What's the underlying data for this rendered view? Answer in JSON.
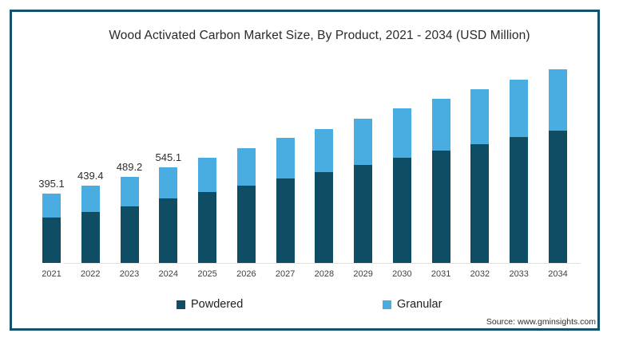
{
  "title": "Wood Activated Carbon Market Size, By Product, 2021 - 2034 (USD Million)",
  "source": "Source: www.gminsights.com",
  "frame": {
    "border_color": "#14536E"
  },
  "legend": {
    "position": "bottom",
    "items": [
      {
        "label": "Powdered",
        "color": "#0E4D64"
      },
      {
        "label": "Granular",
        "color": "#4AADE2"
      }
    ]
  },
  "chart_data": {
    "type": "bar",
    "stacked": true,
    "title": "Wood Activated Carbon Market Size, By Product, 2021 - 2034 (USD Million)",
    "xlabel": "",
    "ylabel": "USD Million",
    "ylim": [
      0,
      1150
    ],
    "grid": false,
    "legend_position": "bottom",
    "categories": [
      "2021",
      "2022",
      "2023",
      "2024",
      "2025",
      "2026",
      "2027",
      "2028",
      "2029",
      "2030",
      "2031",
      "2032",
      "2033",
      "2034"
    ],
    "series": [
      {
        "name": "Powdered",
        "color": "#0E4D64",
        "values": [
          259.0,
          291.0,
          325.0,
          366.0,
          406,
          443,
          482,
          519,
          560,
          601,
          642,
          678,
          716,
          755
        ]
      },
      {
        "name": "Granular",
        "color": "#4AADE2",
        "values": [
          136.1,
          148.4,
          164.2,
          179.1,
          194,
          213,
          231,
          247,
          262,
          279,
          294,
          311,
          330,
          349
        ]
      }
    ],
    "total_labels": [
      "395.1",
      "439.4",
      "489.2",
      "545.1",
      "",
      "",
      "",
      "",
      "",
      "",
      "",
      "",
      "",
      ""
    ]
  }
}
